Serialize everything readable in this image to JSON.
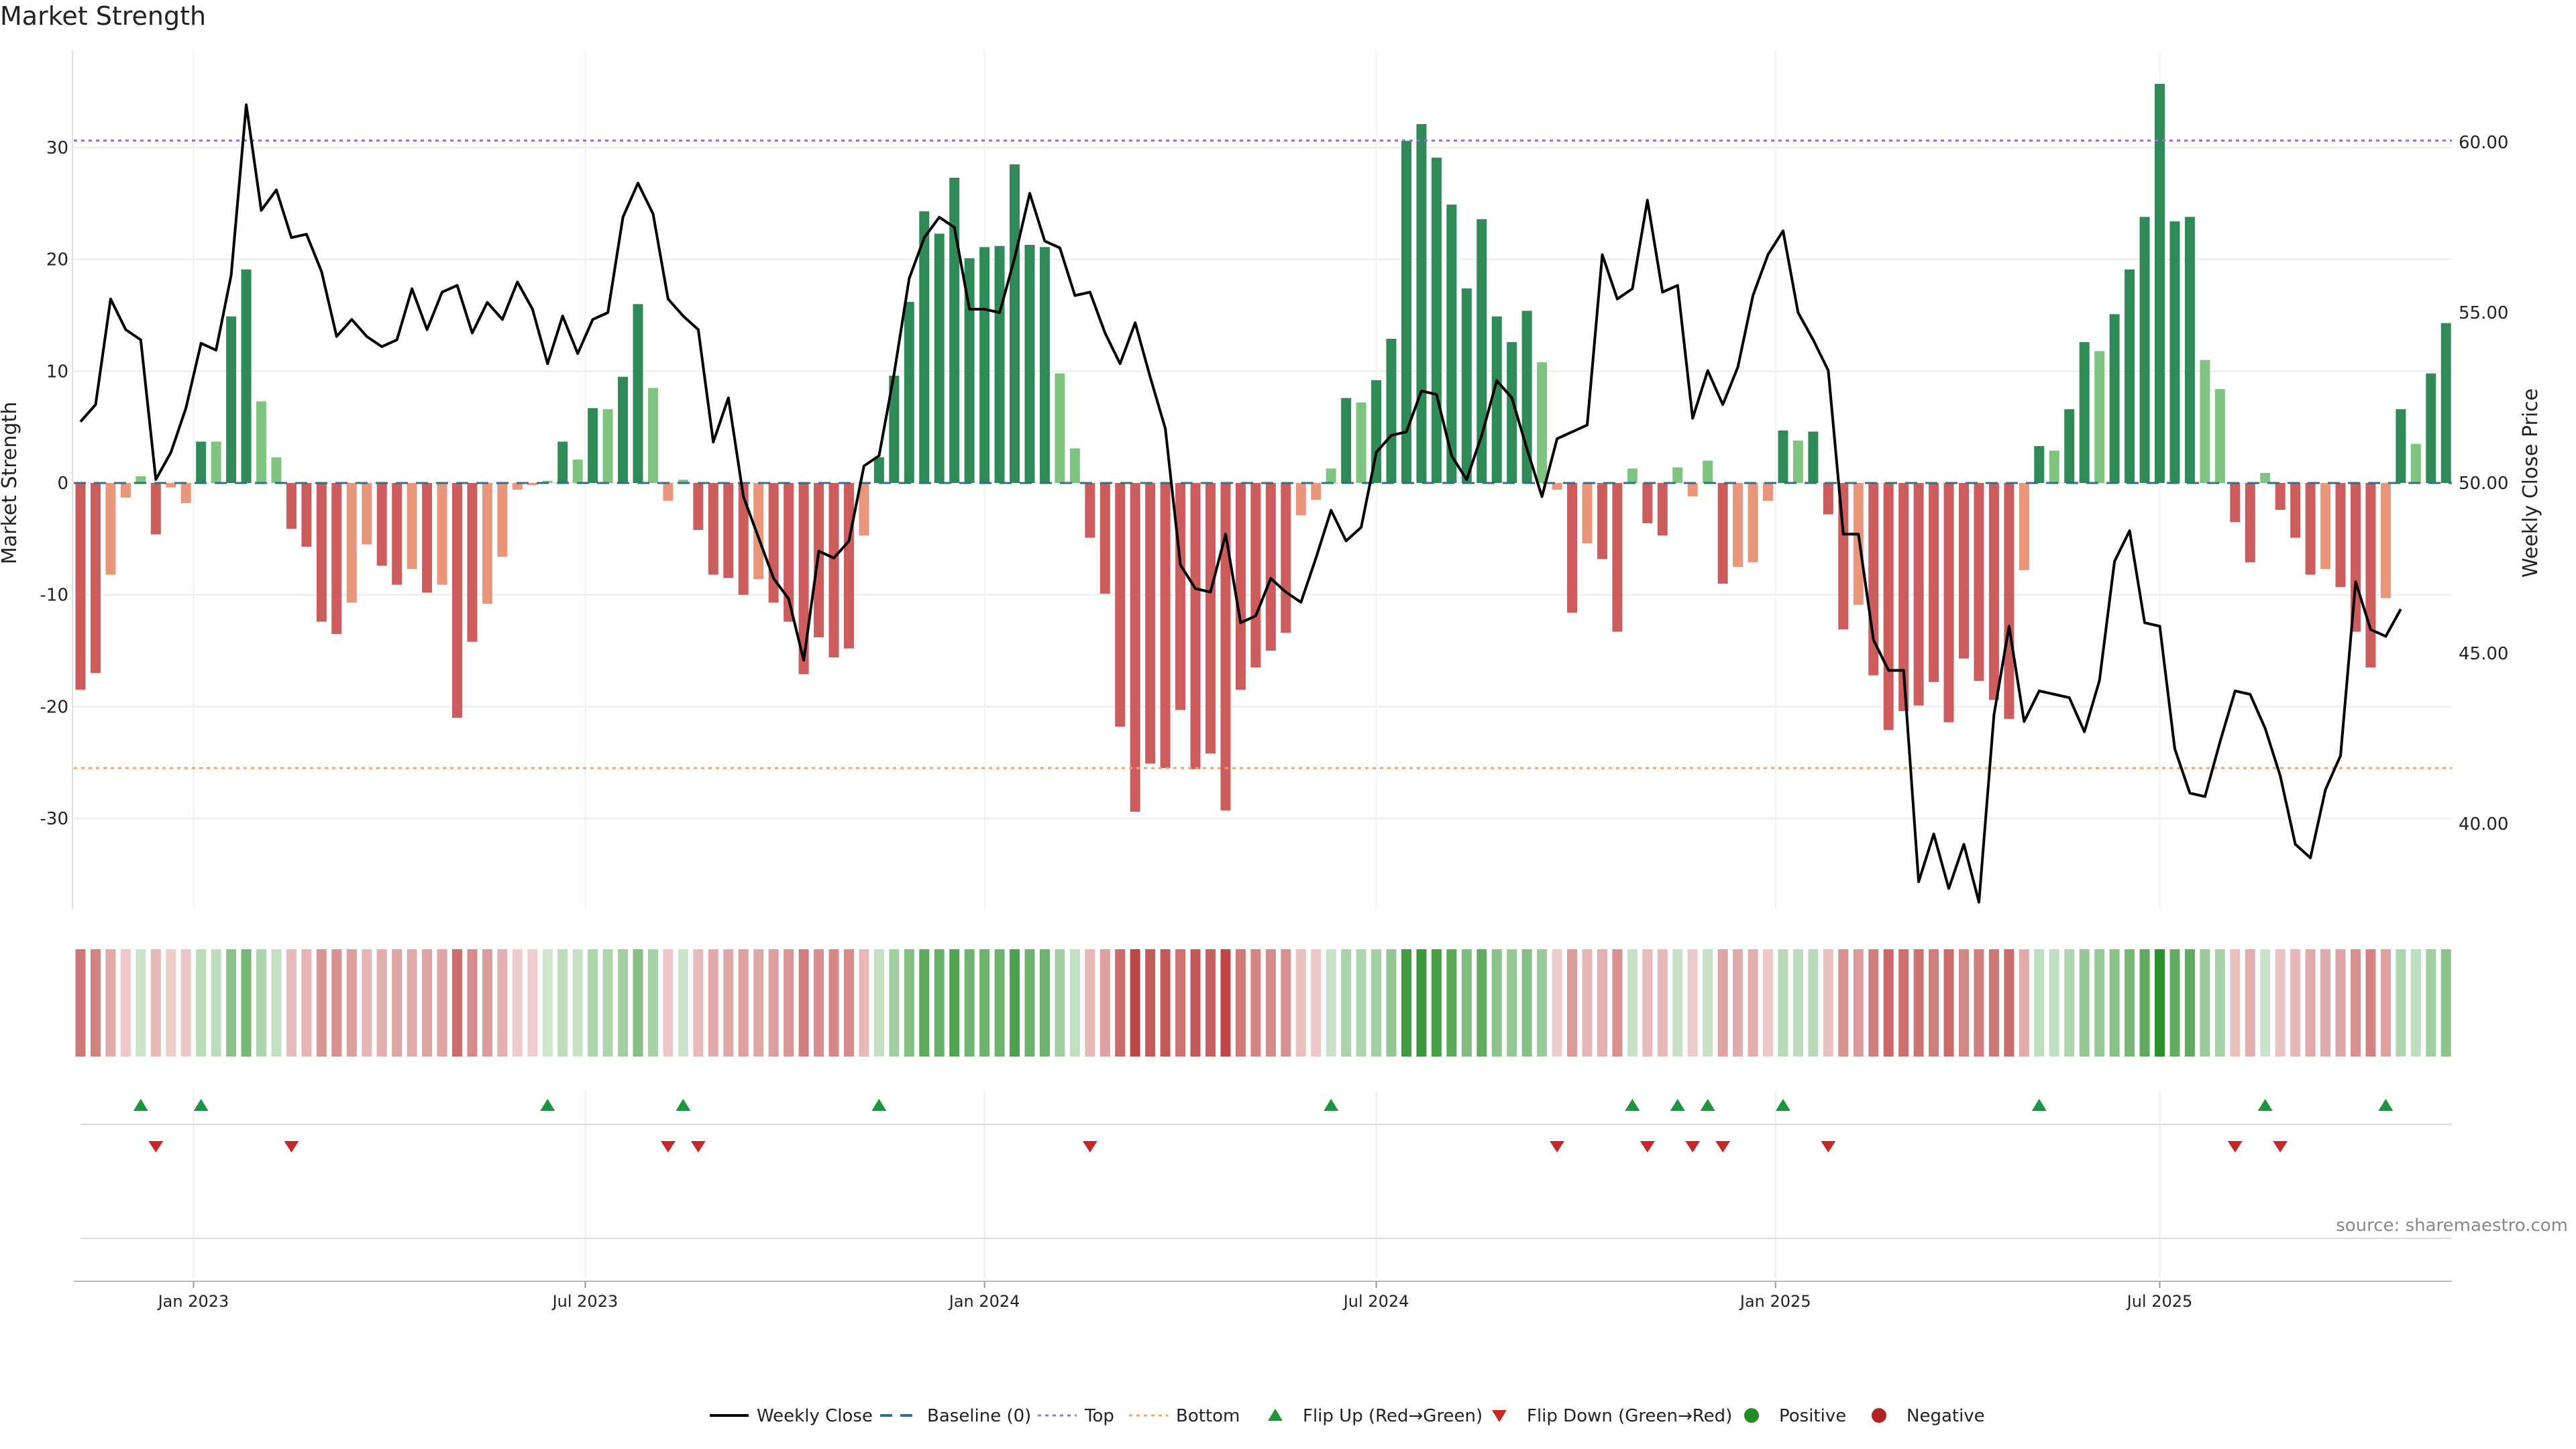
{
  "chart_data": {
    "type": "bar",
    "title": "Market Strength",
    "ylabel_left": "Market Strength",
    "ylabel_right": "Weekly Close Price",
    "source": "source: sharemaestro.com",
    "ylim_left": [
      -38,
      38
    ],
    "ylim_right": [
      38.5,
      61.4
    ],
    "yticks_left": [
      30,
      20,
      10,
      0,
      -10,
      -20,
      -30
    ],
    "yticks_right": [
      60,
      55,
      50,
      45,
      40
    ],
    "ytick_labels_right": [
      "60.00",
      "55.00",
      "50.00",
      "45.00",
      "40.00"
    ],
    "top_level": 30.5,
    "bottom_level": -25.5,
    "x_labels": [
      "Jan 2023",
      "Jul 2023",
      "Jan 2024",
      "Jul 2024",
      "Jan 2025",
      "Jul 2025"
    ],
    "x_label_weeks": [
      7.5,
      33.5,
      60,
      86,
      112.5,
      138
    ],
    "strength": [
      -18.5,
      -17,
      -8.2,
      -1.3,
      0.6,
      -4.6,
      -0.4,
      -1.8,
      3.7,
      3.7,
      14.9,
      19.1,
      7.3,
      2.3,
      -4.1,
      -5.7,
      -12.4,
      -13.5,
      -10.7,
      -5.5,
      -7.4,
      -9.1,
      -7.7,
      -9.8,
      -9.1,
      -21,
      -14.2,
      -10.8,
      -6.6,
      -0.6,
      -0.2,
      0.2,
      3.7,
      2.1,
      6.7,
      6.6,
      9.5,
      16,
      8.5,
      -1.6,
      0.3,
      -4.2,
      -8.2,
      -8.5,
      -10,
      -8.6,
      -10.7,
      -12.4,
      -17.1,
      -13.8,
      -15.6,
      -14.8,
      -4.7,
      2.3,
      9.6,
      16.2,
      24.3,
      22.3,
      27.3,
      20.1,
      21.1,
      21.2,
      28.5,
      21.3,
      21.1,
      9.8,
      3.1,
      -4.9,
      -9.9,
      -21.8,
      -29.4,
      -25.1,
      -25.5,
      -20.3,
      -25.6,
      -24.2,
      -29.3,
      -18.5,
      -16.5,
      -15,
      -13.4,
      -2.9,
      -1.5,
      1.3,
      7.6,
      7.2,
      9.2,
      12.9,
      30.6,
      32.1,
      29.1,
      24.9,
      17.4,
      23.6,
      14.9,
      12.6,
      15.4,
      10.8,
      -0.6,
      -11.6,
      -5.4,
      -6.8,
      -13.3,
      1.3,
      -3.6,
      -4.7,
      1.4,
      -1.2,
      2,
      -9,
      -7.5,
      -7.1,
      -1.6,
      4.7,
      3.8,
      4.6,
      -2.8,
      -13.1,
      -10.9,
      -17.2,
      -22.1,
      -20.4,
      -19.9,
      -17.8,
      -21.4,
      -15.7,
      -17.7,
      -19.4,
      -21.1,
      -7.8,
      3.3,
      2.9,
      6.6,
      12.6,
      11.8,
      15.1,
      19.1,
      23.8,
      35.7,
      23.4,
      23.8,
      11,
      8.4,
      -3.5,
      -7.1,
      0.9,
      -2.4,
      -4.9,
      -8.2,
      -7.7,
      -9.3,
      -13.3,
      -16.5,
      -10.3,
      6.6,
      3.5,
      9.8,
      14.3
    ],
    "close": [
      51.8,
      52.3,
      55.4,
      54.5,
      54.2,
      50.1,
      50.9,
      52.2,
      54.1,
      53.9,
      56.1,
      61.1,
      58.0,
      58.6,
      57.2,
      57.3,
      56.2,
      54.3,
      54.8,
      54.3,
      54.0,
      54.2,
      55.7,
      54.5,
      55.6,
      55.8,
      54.4,
      55.3,
      54.8,
      55.9,
      55.1,
      53.5,
      54.9,
      53.8,
      54.8,
      55.0,
      57.8,
      58.8,
      57.9,
      55.4,
      54.9,
      54.5,
      51.2,
      52.5,
      49.6,
      48.4,
      47.2,
      46.6,
      44.8,
      48.0,
      47.8,
      48.3,
      50.5,
      50.8,
      53.2,
      56.0,
      57.2,
      57.8,
      57.5,
      55.1,
      55.1,
      55.0,
      56.6,
      58.5,
      57.1,
      56.9,
      55.5,
      55.6,
      54.4,
      53.5,
      54.7,
      53.1,
      51.6,
      47.6,
      46.9,
      46.8,
      48.5,
      45.9,
      46.1,
      47.2,
      46.8,
      46.5,
      47.8,
      49.2,
      48.3,
      48.7,
      50.9,
      51.4,
      51.5,
      52.7,
      52.6,
      50.8,
      50.1,
      51.4,
      53.0,
      52.5,
      51.0,
      49.6,
      51.3,
      51.5,
      51.7,
      56.7,
      55.4,
      55.7,
      58.3,
      55.6,
      55.8,
      51.9,
      53.3,
      52.3,
      53.4,
      55.5,
      56.7,
      57.4,
      55.0,
      54.2,
      53.3,
      48.5,
      48.5,
      45.4,
      44.5,
      44.5,
      38.3,
      39.7,
      38.1,
      39.4,
      37.7,
      43.2,
      45.8,
      43.0,
      43.9,
      43.8,
      43.7,
      42.7,
      44.2,
      47.7,
      48.6,
      45.9,
      45.8,
      42.2,
      40.9,
      40.8,
      42.4,
      43.9,
      43.8,
      42.8,
      41.4,
      39.4,
      39.0,
      41.0,
      42.0,
      47.1,
      45.7,
      45.5,
      46.3
    ],
    "flip_up_weeks": [
      4,
      8,
      31,
      40,
      53,
      83,
      103,
      106,
      108,
      113,
      130,
      145,
      153
    ],
    "flip_down_weeks": [
      5,
      14,
      39,
      41,
      67,
      98,
      104,
      107,
      109,
      116,
      143,
      146
    ],
    "legend": [
      "Weekly Close",
      "Baseline (0)",
      "Top",
      "Bottom",
      "Flip Up (Red→Green)",
      "Flip Down (Green→Red)",
      "Positive",
      "Negative"
    ],
    "colors": {
      "pos_strong": "#2e8b57",
      "pos_weak": "#7fc480",
      "neg_strong": "#cd5c5c",
      "neg_weak": "#e9967a",
      "close_line": "#000000",
      "baseline": "#2f6f8f",
      "top": "#9370db",
      "bottom": "#f4a460",
      "flip_up": "#1a9641",
      "flip_down": "#c62828",
      "positive": "#228b22",
      "negative": "#b22222"
    }
  }
}
